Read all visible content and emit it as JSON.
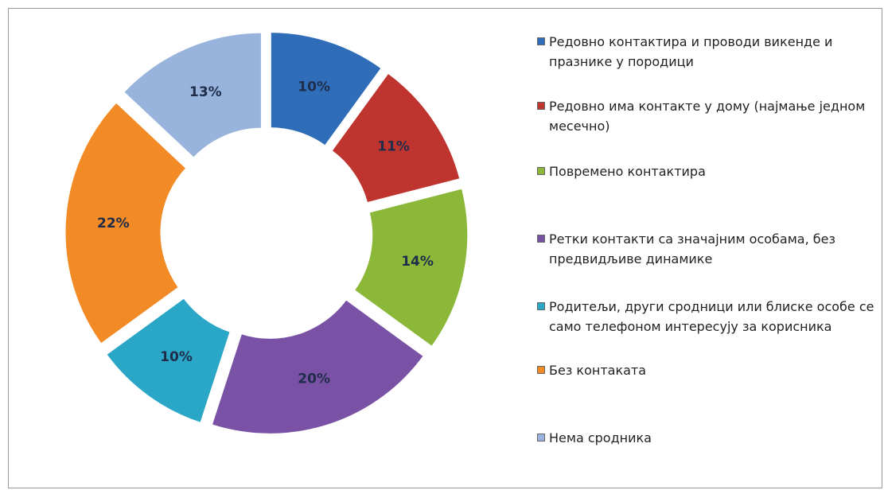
{
  "chart_data": {
    "type": "doughnut",
    "categories": [
      "Редовно контактира и проводи викенде и празнике у породици",
      "Редовно има контакте у дому (најмање једном месечно)",
      "Повремено контактира",
      "Ретки контакти са значајним особама, без предвидљиве динамике",
      "Родитељи, други сродници или блиске особе се само телефоном интересују за корисника",
      "Без контаката",
      "Нема сродника"
    ],
    "values": [
      10,
      11,
      14,
      20,
      10,
      22,
      13
    ],
    "value_labels": [
      "10%",
      "11%",
      "14%",
      "20%",
      "10%",
      "22%",
      "13%"
    ],
    "colors": [
      "#2f6db8",
      "#c0342f",
      "#8cb83a",
      "#7a52a5",
      "#2aa6c6",
      "#f28a25",
      "#98b3dc"
    ],
    "legend": "right",
    "exploded": true
  }
}
